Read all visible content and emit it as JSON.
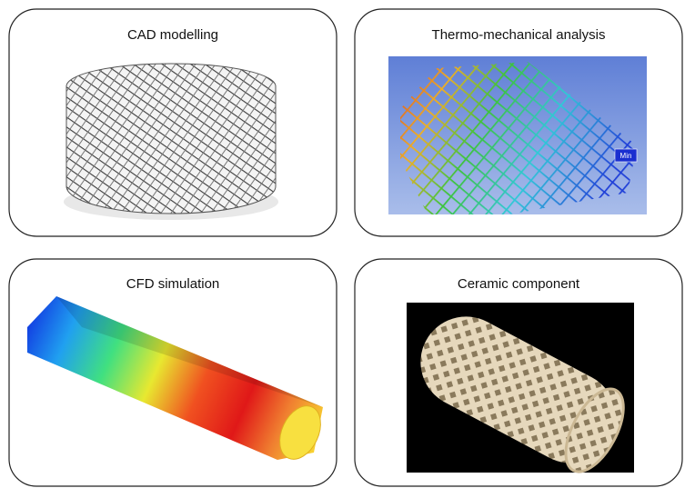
{
  "panels": [
    {
      "title": "CAD modelling"
    },
    {
      "title": "Thermo-mechanical analysis",
      "annotation": "Min"
    },
    {
      "title": "CFD simulation"
    },
    {
      "title": "Ceramic component"
    }
  ]
}
